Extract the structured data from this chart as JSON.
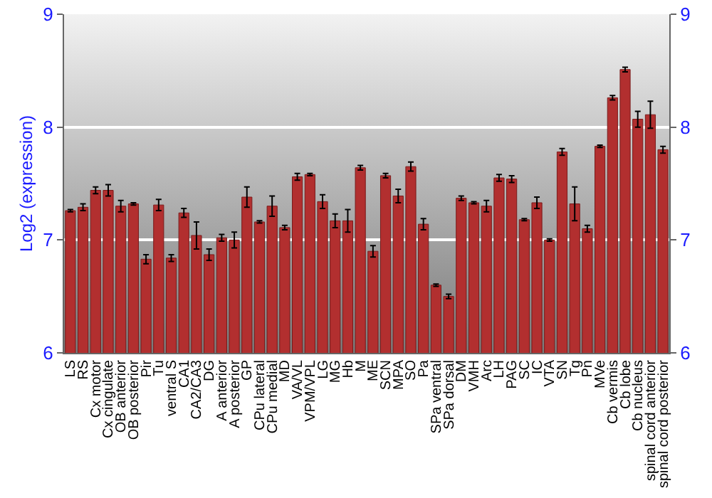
{
  "chart_data": {
    "type": "bar",
    "ylabel": "Log2 (expression)",
    "categories": [
      "LS",
      "RS",
      "Cx motor",
      "Cx cingulate",
      "OB anterior",
      "OB posterior",
      "Pir",
      "Tu",
      "ventral S",
      "CA1",
      "CA2/CA3",
      "DG",
      "A anterior",
      "A posterior",
      "GP",
      "CPu lateral",
      "CPu medial",
      "MD",
      "VA/VL",
      "VPM/VPL",
      "LG",
      "MG",
      "Hb",
      "M",
      "ME",
      "SCN",
      "MPA",
      "SO",
      "Pa",
      "SPa ventral",
      "SPa dorsal",
      "DM",
      "VMH",
      "Arc",
      "LH",
      "PAG",
      "SC",
      "IC",
      "VTA",
      "SN",
      "Tg",
      "Pn",
      "MVe",
      "Cb vermis",
      "Cb lobe",
      "Cb nucleus",
      "spinal cord anterior",
      "spinal cord posterior"
    ],
    "values": [
      7.26,
      7.29,
      7.44,
      7.44,
      7.3,
      7.32,
      6.83,
      7.31,
      6.84,
      7.24,
      7.04,
      6.87,
      7.02,
      7.0,
      7.38,
      7.16,
      7.3,
      7.11,
      7.56,
      7.58,
      7.34,
      7.17,
      7.17,
      7.64,
      6.9,
      7.57,
      7.39,
      7.65,
      7.14,
      6.6,
      6.5,
      7.37,
      7.33,
      7.3,
      7.55,
      7.54,
      7.18,
      7.33,
      7.0,
      7.78,
      7.32,
      7.1,
      7.83,
      8.26,
      8.51,
      8.07,
      8.11,
      7.8
    ],
    "errors": [
      0.01,
      0.03,
      0.03,
      0.05,
      0.05,
      0.01,
      0.04,
      0.05,
      0.03,
      0.04,
      0.12,
      0.05,
      0.03,
      0.07,
      0.09,
      0.01,
      0.09,
      0.02,
      0.03,
      0.01,
      0.06,
      0.06,
      0.1,
      0.02,
      0.05,
      0.02,
      0.06,
      0.04,
      0.05,
      0.01,
      0.02,
      0.02,
      0.01,
      0.05,
      0.03,
      0.03,
      0.01,
      0.05,
      0.01,
      0.03,
      0.15,
      0.03,
      0.01,
      0.02,
      0.02,
      0.07,
      0.12,
      0.03
    ],
    "color": "#b22f2f",
    "ylim": [
      6,
      9
    ],
    "yticks": [
      6,
      7,
      8,
      9
    ],
    "y2lim": [
      6,
      9
    ],
    "y2ticks": [
      6,
      7,
      8,
      9
    ],
    "grid": "y"
  }
}
